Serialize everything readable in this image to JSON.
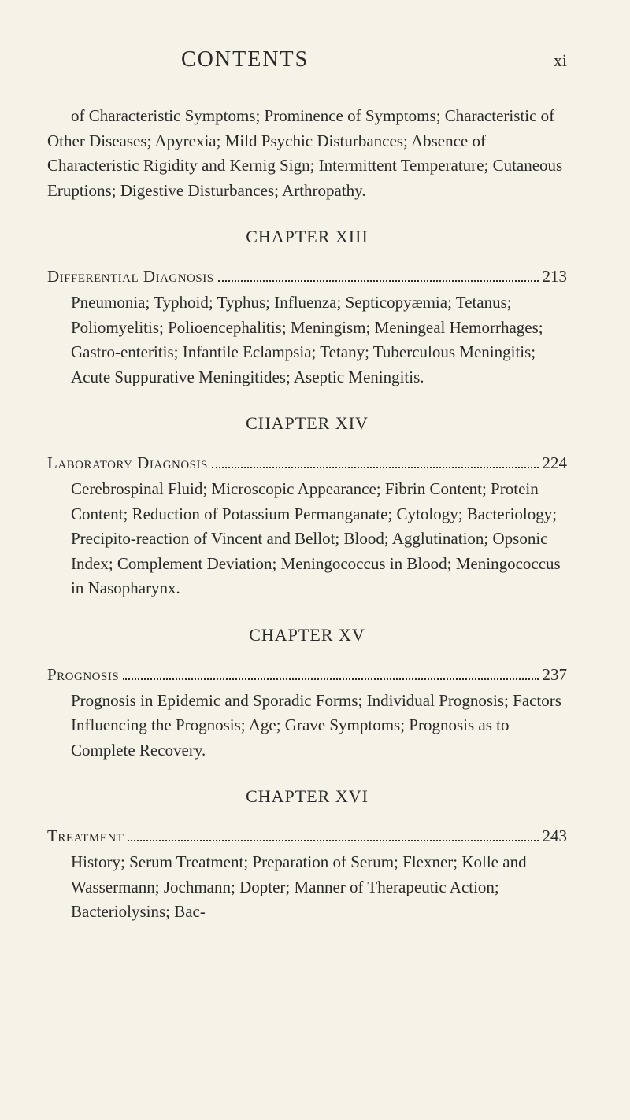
{
  "header": {
    "title": "CONTENTS",
    "page_number": "xi"
  },
  "intro_paragraph": "of Characteristic Symptoms; Prominence of Symptoms; Characteristic of Other Diseases; Apyrexia; Mild Psychic Disturbances; Absence of Characteristic Rigidity and Kernig Sign; Intermittent Temperature; Cutaneous Eruptions; Digestive Disturbances; Arthropathy.",
  "chapters": [
    {
      "heading": "CHAPTER XIII",
      "entry_title": "Differential Diagnosis",
      "entry_page": "213",
      "description": "Pneumonia; Typhoid; Typhus; Influenza; Septicopyæmia; Tetanus; Poliomyelitis; Polioencephalitis; Meningism; Meningeal Hemorrhages; Gastro-enteritis; Infantile Eclampsia; Tetany; Tuberculous Meningitis; Acute Suppurative Meningitides; Aseptic Meningitis."
    },
    {
      "heading": "CHAPTER XIV",
      "entry_title": "Laboratory Diagnosis",
      "entry_page": "224",
      "description": "Cerebrospinal Fluid; Microscopic Appearance; Fibrin Content; Protein Content; Reduction of Potassium Permanganate; Cytology; Bacteriology; Precipito-reaction of Vincent and Bellot; Blood; Agglutination; Opsonic Index; Complement Deviation; Meningococcus in Blood; Meningococcus in Nasopharynx."
    },
    {
      "heading": "CHAPTER XV",
      "entry_title": "Prognosis",
      "entry_page": "237",
      "description": "Prognosis in Epidemic and Sporadic Forms; Individual Prognosis; Factors Influencing the Prognosis; Age; Grave Symptoms; Prognosis as to Complete Recovery."
    },
    {
      "heading": "CHAPTER XVI",
      "entry_title": "Treatment",
      "entry_page": "243",
      "description": "History; Serum Treatment; Preparation of Serum; Flexner; Kolle and Wassermann; Jochmann; Dopter; Manner of Therapeutic Action; Bacteriolysins; Bac-"
    }
  ],
  "colors": {
    "background": "#f5f2e8",
    "text": "#2a2a28"
  },
  "typography": {
    "header_fontsize": 28,
    "page_number_fontsize": 22,
    "body_fontsize": 21,
    "chapter_heading_fontsize": 22,
    "line_height": 1.5
  }
}
